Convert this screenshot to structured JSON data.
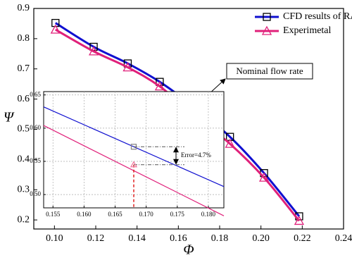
{
  "chart_data": [
    {
      "type": "line",
      "x_label": "Φ",
      "y_label": "Ψ",
      "x": [
        0.1005,
        0.119,
        0.1355,
        0.151,
        0.168,
        0.185,
        0.2015,
        0.2185
      ],
      "series": [
        {
          "name": "CFD results of RANS",
          "color": "#1010d0",
          "marker": "square",
          "values": [
            0.852,
            0.773,
            0.718,
            0.657,
            0.572,
            0.475,
            0.355,
            0.212
          ]
        },
        {
          "name": "Experimetal",
          "color": "#e0207a",
          "marker": "triangle",
          "values": [
            0.83,
            0.758,
            0.705,
            0.642,
            0.545,
            0.452,
            0.34,
            0.197
          ]
        }
      ],
      "xlim": [
        0.09,
        0.24
      ],
      "xticks": [
        {
          "value": 0.1,
          "label": "0.10"
        },
        {
          "value": 0.12,
          "label": "0.12"
        },
        0.14,
        0.16,
        0.18,
        {
          "value": 0.2,
          "label": "0.20"
        },
        0.22,
        0.24
      ],
      "ylim": [
        0.17,
        0.9
      ],
      "yticks": [
        0.2,
        0.3,
        0.4,
        0.5,
        0.6,
        0.7,
        0.8,
        0.9
      ],
      "legend": "top-right",
      "annotation": "Nominal flow rate"
    },
    {
      "type": "line",
      "x": [
        0.1535,
        0.1825
      ],
      "series": [
        {
          "color": "#1010d0",
          "values": [
            0.632,
            0.512
          ]
        },
        {
          "color": "#e0207a",
          "values": [
            0.604,
            0.468
          ]
        }
      ],
      "xlim": [
        0.1535,
        0.1825
      ],
      "xticks": [
        0.155,
        {
          "value": 0.16,
          "label": "0.160"
        },
        0.165,
        {
          "value": 0.17,
          "label": "0.170"
        },
        0.175,
        {
          "value": 0.18,
          "label": "0.180"
        }
      ],
      "ylim": [
        0.48,
        0.655
      ],
      "yticks": [
        {
          "value": 0.5,
          "label": "0.50"
        },
        0.55,
        {
          "value": 0.6,
          "label": "0.60"
        },
        0.65
      ],
      "grid": true,
      "annotation": "Error=4.7%"
    }
  ]
}
